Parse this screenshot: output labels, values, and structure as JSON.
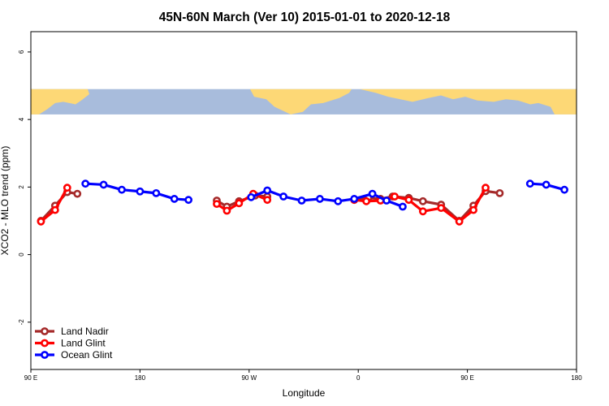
{
  "chart_data": {
    "type": "line",
    "title": "45N-60N March (Ver 10)   2015-01-01 to 2020-12-18",
    "xlabel": "Longitude",
    "ylabel": "XCO2 - MLO trend (ppm)",
    "xlim": [
      -90,
      180
    ],
    "ylim": [
      -3.4,
      6.6
    ],
    "xticks": [
      {
        "value": -90,
        "label": "90 E"
      },
      {
        "value": -36,
        "label": "180"
      },
      {
        "value": 18,
        "label": "90 W"
      },
      {
        "value": 72,
        "label": "0"
      },
      {
        "value": 126,
        "label": "90 E"
      },
      {
        "value": 180,
        "label": "180"
      }
    ],
    "yticks": [
      {
        "value": -2,
        "label": "-2"
      },
      {
        "value": 0,
        "label": "0"
      },
      {
        "value": 2,
        "label": "2"
      },
      {
        "value": 4,
        "label": "4"
      },
      {
        "value": 6,
        "label": "6"
      }
    ],
    "map_band": {
      "ymin": 4.15,
      "ymax": 4.9,
      "ocean_color": "#a8bcdc",
      "land_color": "#fdd876"
    },
    "legend_position": "bottom-left",
    "series": [
      {
        "name": "Land Nadir",
        "color": "#a52a2a",
        "segments": [
          [
            [
              -85,
              1.0
            ],
            [
              -78,
              1.45
            ],
            [
              -72,
              1.85
            ],
            [
              -67,
              1.8
            ]
          ],
          [
            [
              2,
              1.6
            ],
            [
              7,
              1.42
            ],
            [
              13,
              1.58
            ],
            [
              21,
              1.75
            ],
            [
              27,
              1.72
            ]
          ],
          [
            [
              70,
              1.62
            ],
            [
              77,
              1.68
            ],
            [
              83,
              1.65
            ],
            [
              89,
              1.72
            ],
            [
              97,
              1.68
            ],
            [
              104,
              1.58
            ],
            [
              113,
              1.48
            ],
            [
              122,
              1.0
            ],
            [
              129,
              1.45
            ],
            [
              135,
              1.88
            ],
            [
              142,
              1.82
            ]
          ]
        ]
      },
      {
        "name": "Land Glint",
        "color": "#ff0000",
        "segments": [
          [
            [
              -85,
              0.98
            ],
            [
              -78,
              1.32
            ],
            [
              -72,
              1.98
            ]
          ],
          [
            [
              2,
              1.5
            ],
            [
              7,
              1.3
            ],
            [
              13,
              1.52
            ],
            [
              20,
              1.8
            ],
            [
              27,
              1.62
            ]
          ],
          [
            [
              70,
              1.62
            ],
            [
              76,
              1.58
            ],
            [
              83,
              1.6
            ],
            [
              90,
              1.72
            ],
            [
              97,
              1.62
            ],
            [
              104,
              1.28
            ],
            [
              113,
              1.38
            ],
            [
              122,
              0.98
            ],
            [
              129,
              1.32
            ],
            [
              135,
              1.98
            ]
          ]
        ]
      },
      {
        "name": "Ocean Glint",
        "color": "#0000ff",
        "segments": [
          [
            [
              -63,
              2.1
            ],
            [
              -54,
              2.07
            ],
            [
              -45,
              1.92
            ],
            [
              -36,
              1.87
            ],
            [
              -28,
              1.82
            ],
            [
              -19,
              1.65
            ],
            [
              -12,
              1.62
            ]
          ],
          [
            [
              19,
              1.7
            ],
            [
              27,
              1.9
            ],
            [
              35,
              1.72
            ],
            [
              44,
              1.6
            ],
            [
              53,
              1.65
            ],
            [
              62,
              1.58
            ],
            [
              70,
              1.65
            ],
            [
              79,
              1.8
            ],
            [
              86,
              1.6
            ],
            [
              94,
              1.42
            ]
          ],
          [
            [
              157,
              2.1
            ],
            [
              165,
              2.07
            ],
            [
              174,
              1.92
            ]
          ]
        ]
      }
    ]
  }
}
